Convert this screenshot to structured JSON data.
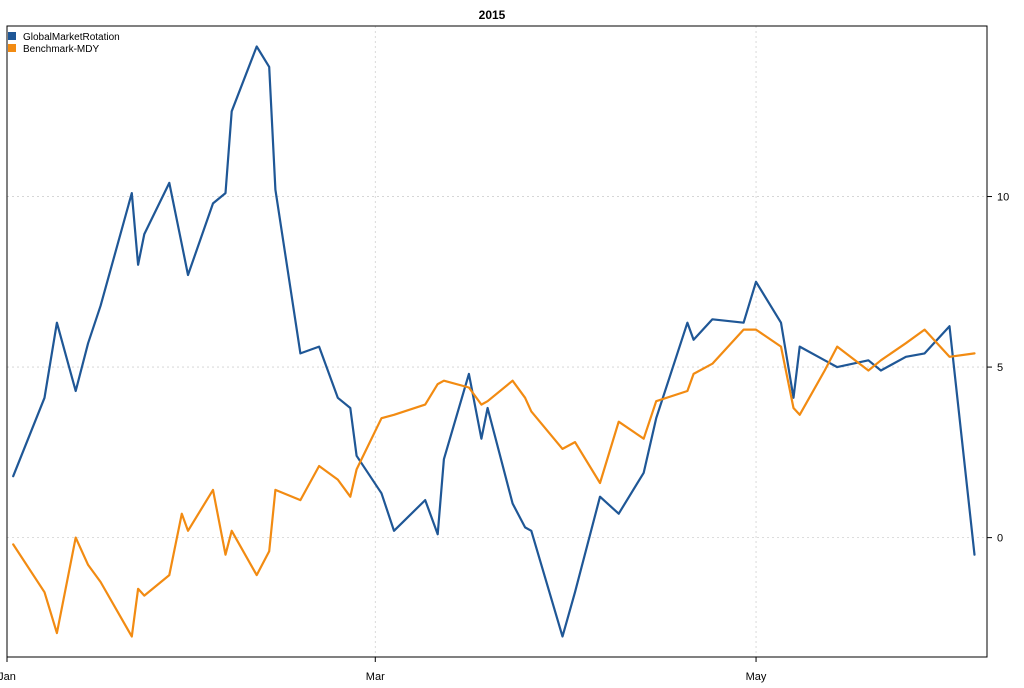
{
  "chart_data": {
    "type": "line",
    "title": "2015",
    "xlabel": "",
    "ylabel": "",
    "x_tick_labels": [
      "Jan",
      "Mar",
      "May"
    ],
    "y_tick_labels": [
      "10",
      "5",
      "0"
    ],
    "y_axis_side": "right",
    "xlim": [
      "2015-01-01",
      "2015-06-07"
    ],
    "ylim": [
      -3.5,
      15.0
    ],
    "grid": true,
    "legend_position": "top-left",
    "x": [
      "2015-01-02",
      "2015-01-07",
      "2015-01-09",
      "2015-01-12",
      "2015-01-14",
      "2015-01-16",
      "2015-01-21",
      "2015-01-22",
      "2015-01-23",
      "2015-01-27",
      "2015-01-29",
      "2015-01-30",
      "2015-02-03",
      "2015-02-05",
      "2015-02-06",
      "2015-02-10",
      "2015-02-12",
      "2015-02-13",
      "2015-02-17",
      "2015-02-20",
      "2015-02-23",
      "2015-02-25",
      "2015-02-26",
      "2015-03-02",
      "2015-03-04",
      "2015-03-09",
      "2015-03-11",
      "2015-03-12",
      "2015-03-16",
      "2015-03-18",
      "2015-03-19",
      "2015-03-23",
      "2015-03-25",
      "2015-03-26",
      "2015-03-31",
      "2015-04-02",
      "2015-04-06",
      "2015-04-09",
      "2015-04-13",
      "2015-04-15",
      "2015-04-20",
      "2015-04-21",
      "2015-04-24",
      "2015-04-29",
      "2015-05-01",
      "2015-05-05",
      "2015-05-07",
      "2015-05-08",
      "2015-05-12",
      "2015-05-14",
      "2015-05-19",
      "2015-05-21",
      "2015-05-25",
      "2015-05-28",
      "2015-06-01",
      "2015-06-05"
    ],
    "series": [
      {
        "name": "GlobalMarketRotation",
        "color": "#1f5796",
        "values": [
          1.8,
          4.1,
          6.3,
          4.3,
          5.7,
          6.8,
          10.1,
          8.0,
          8.9,
          10.4,
          8.6,
          7.7,
          9.8,
          10.1,
          12.5,
          14.4,
          13.8,
          10.2,
          5.4,
          5.6,
          4.1,
          3.8,
          2.4,
          1.3,
          0.2,
          1.1,
          0.1,
          2.3,
          4.8,
          2.9,
          3.8,
          1.0,
          0.3,
          0.2,
          -2.9,
          -1.6,
          1.2,
          0.7,
          1.9,
          3.5,
          6.3,
          5.8,
          6.4,
          6.3,
          7.5,
          6.3,
          4.1,
          5.6,
          5.2,
          5.0,
          5.2,
          4.9,
          5.3,
          5.4,
          6.2,
          -0.5
        ]
      },
      {
        "name": "Benchmark-MDY",
        "color": "#f28b12",
        "values": [
          -0.2,
          -1.6,
          -2.8,
          0.0,
          -0.8,
          -1.3,
          -2.9,
          -1.5,
          -1.7,
          -1.1,
          0.7,
          0.2,
          1.4,
          -0.5,
          0.2,
          -1.1,
          -0.4,
          1.4,
          1.1,
          2.1,
          1.7,
          1.2,
          2.0,
          3.5,
          3.6,
          3.9,
          4.5,
          4.6,
          4.4,
          3.9,
          4.0,
          4.6,
          4.1,
          3.7,
          2.6,
          2.8,
          1.6,
          3.4,
          2.9,
          4.0,
          4.3,
          4.8,
          5.1,
          6.1,
          6.1,
          5.6,
          3.8,
          3.6,
          4.9,
          5.6,
          4.9,
          5.2,
          5.7,
          6.1,
          5.3,
          5.4
        ]
      }
    ]
  }
}
